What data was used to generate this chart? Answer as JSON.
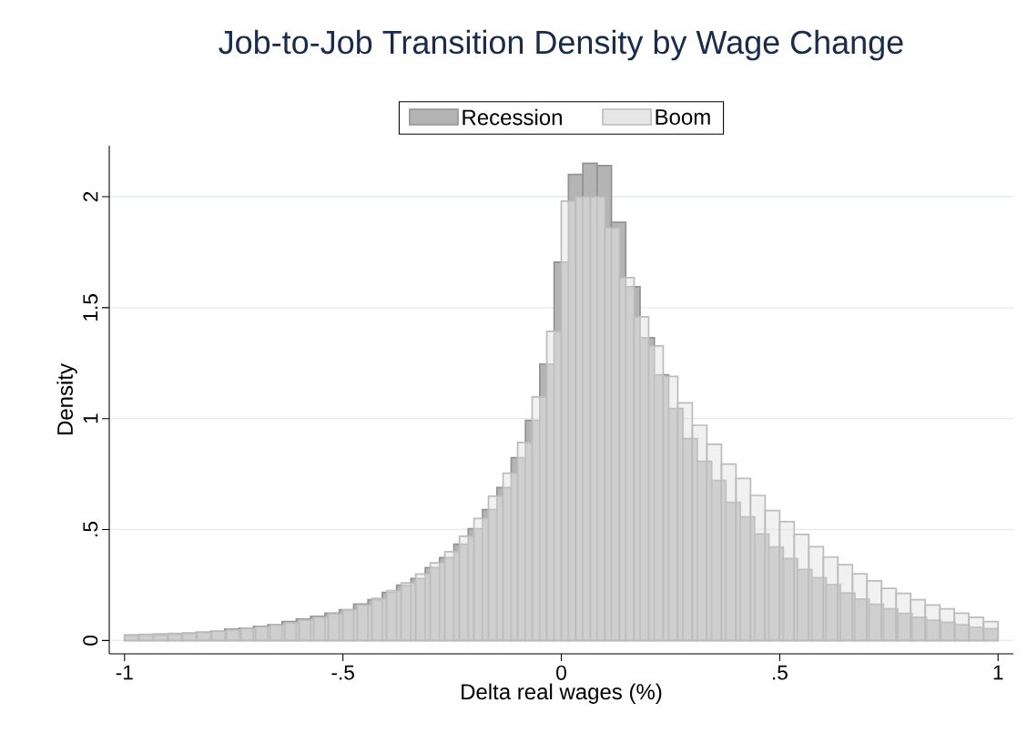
{
  "chart_data": {
    "type": "histogram",
    "title": "Job-to-Job Transition Density by Wage Change",
    "xlabel": "Delta real wages (%)",
    "ylabel": "Density",
    "xlim": [
      -1.035,
      1.035
    ],
    "ylim": [
      -0.06,
      2.23
    ],
    "xticks": [
      -1,
      {
        "value": -0.5,
        "label": "-.5"
      },
      0,
      {
        "value": 0.5,
        "label": ".5"
      },
      1
    ],
    "yticks": [
      0,
      {
        "value": 0.5,
        "label": ".5"
      },
      1,
      {
        "value": 1.5,
        "label": "1.5"
      },
      2
    ],
    "grid": "y",
    "legend": "top",
    "bins": [
      -1,
      -0.9672,
      -0.9344,
      -0.9016,
      -0.8689,
      -0.8361,
      -0.8033,
      -0.7705,
      -0.7377,
      -0.7049,
      -0.6721,
      -0.6393,
      -0.6066,
      -0.5738,
      -0.541,
      -0.5082,
      -0.4754,
      -0.4426,
      -0.4098,
      -0.377,
      -0.3443,
      -0.3115,
      -0.2787,
      -0.2459,
      -0.2131,
      -0.1803,
      -0.1475,
      -0.1148,
      -0.082,
      -0.0492,
      -0.0164,
      0.0164,
      0.0492,
      0.082,
      0.1148,
      0.1475,
      0.1803,
      0.2131,
      0.2459,
      0.2787,
      0.3115,
      0.3443,
      0.377,
      0.4098,
      0.4426,
      0.4754,
      0.5082,
      0.541,
      0.5738,
      0.6066,
      0.6393,
      0.6721,
      0.7049,
      0.7377,
      0.7705,
      0.8033,
      0.8361,
      0.8689,
      0.9016,
      0.9344,
      0.9672,
      1
    ],
    "series": [
      {
        "name": "Recession",
        "color": "#b4b4b4",
        "values": [
          0.021,
          0.022,
          0.025,
          0.028,
          0.032,
          0.037,
          0.041,
          0.051,
          0.055,
          0.064,
          0.071,
          0.085,
          0.096,
          0.109,
          0.123,
          0.139,
          0.164,
          0.184,
          0.216,
          0.249,
          0.279,
          0.328,
          0.373,
          0.434,
          0.504,
          0.59,
          0.689,
          0.824,
          0.992,
          1.246,
          1.705,
          2.1,
          2.15,
          2.14,
          1.885,
          1.594,
          1.365,
          1.197,
          1.045,
          0.91,
          0.807,
          0.721,
          0.623,
          0.557,
          0.48,
          0.422,
          0.369,
          0.32,
          0.283,
          0.251,
          0.214,
          0.187,
          0.163,
          0.143,
          0.122,
          0.105,
          0.091,
          0.082,
          0.071,
          0.06,
          0.053
        ]
      },
      {
        "name": "Boom",
        "color": "#e6e6e6",
        "bins": [
          -1,
          -0.9667,
          -0.9333,
          -0.9,
          -0.8667,
          -0.8333,
          -0.8,
          -0.7667,
          -0.7333,
          -0.7,
          -0.6667,
          -0.6333,
          -0.6,
          -0.5667,
          -0.5333,
          -0.5,
          -0.4667,
          -0.4333,
          -0.4,
          -0.3667,
          -0.3333,
          -0.3,
          -0.2667,
          -0.2333,
          -0.2,
          -0.1667,
          -0.1333,
          -0.1,
          -0.0667,
          -0.0333,
          0,
          0.0333,
          0.0667,
          0.1,
          0.1333,
          0.1667,
          0.2,
          0.2333,
          0.2667,
          0.3,
          0.3333,
          0.3667,
          0.4,
          0.4333,
          0.4667,
          0.5,
          0.5333,
          0.5667,
          0.6,
          0.6333,
          0.6667,
          0.7,
          0.7333,
          0.7667,
          0.8,
          0.8333,
          0.8667,
          0.9,
          0.9333,
          0.9667,
          1
        ],
        "values": [
          0.026,
          0.028,
          0.03,
          0.032,
          0.034,
          0.037,
          0.042,
          0.048,
          0.054,
          0.062,
          0.07,
          0.08,
          0.092,
          0.105,
          0.12,
          0.137,
          0.16,
          0.19,
          0.225,
          0.26,
          0.3,
          0.35,
          0.4,
          0.47,
          0.55,
          0.65,
          0.754,
          0.893,
          1.098,
          1.393,
          1.98,
          2.0,
          2.0,
          1.86,
          1.635,
          1.459,
          1.328,
          1.19,
          1.071,
          0.97,
          0.884,
          0.795,
          0.73,
          0.654,
          0.586,
          0.536,
          0.478,
          0.423,
          0.376,
          0.342,
          0.301,
          0.269,
          0.235,
          0.212,
          0.184,
          0.16,
          0.143,
          0.123,
          0.105,
          0.085
        ]
      }
    ]
  }
}
